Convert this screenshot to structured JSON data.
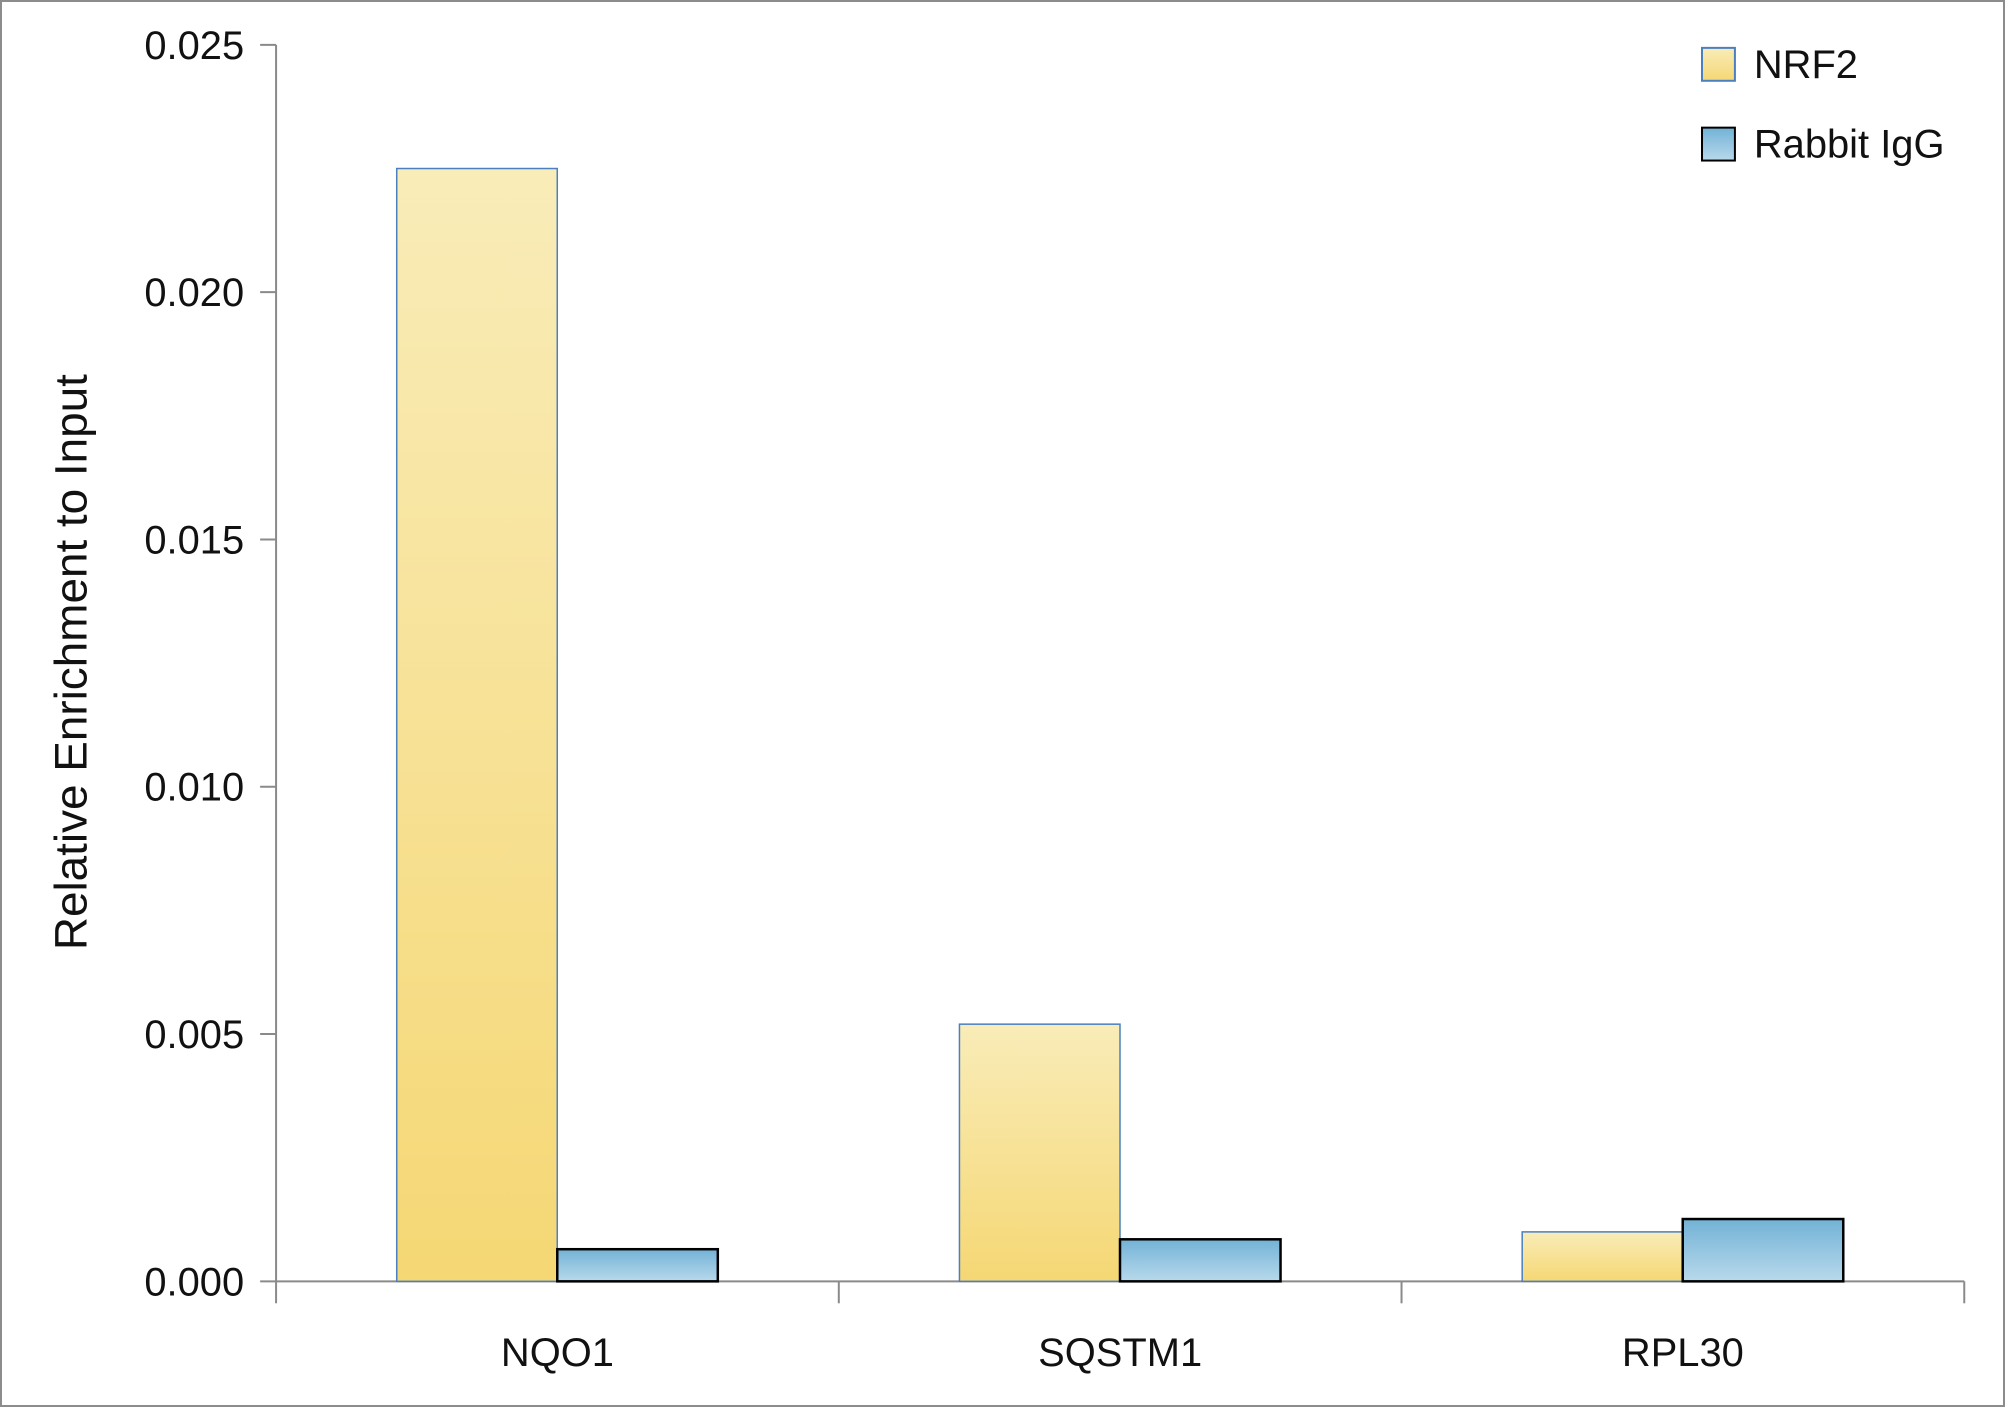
{
  "chart_data": {
    "type": "bar",
    "title": "",
    "xlabel": "",
    "ylabel": "Relative Enrichment to Input",
    "ylim": [
      0,
      0.025
    ],
    "yticks": [
      "0.000",
      "0.005",
      "0.010",
      "0.015",
      "0.020",
      "0.025"
    ],
    "categories": [
      "NQO1",
      "SQSTM1",
      "RPL30"
    ],
    "series": [
      {
        "name": "NRF2",
        "values": [
          0.0225,
          0.0052,
          0.001
        ],
        "color_top": "#f9ecb8",
        "color_bottom": "#f5d774",
        "stroke": "#4a7fc0"
      },
      {
        "name": "Rabbit IgG",
        "values": [
          0.00065,
          0.00085,
          0.00126
        ],
        "color_top": "#72b2d6",
        "color_bottom": "#b8d9eb",
        "stroke": "#000000"
      }
    ],
    "grid": false,
    "legend": "top-right"
  }
}
